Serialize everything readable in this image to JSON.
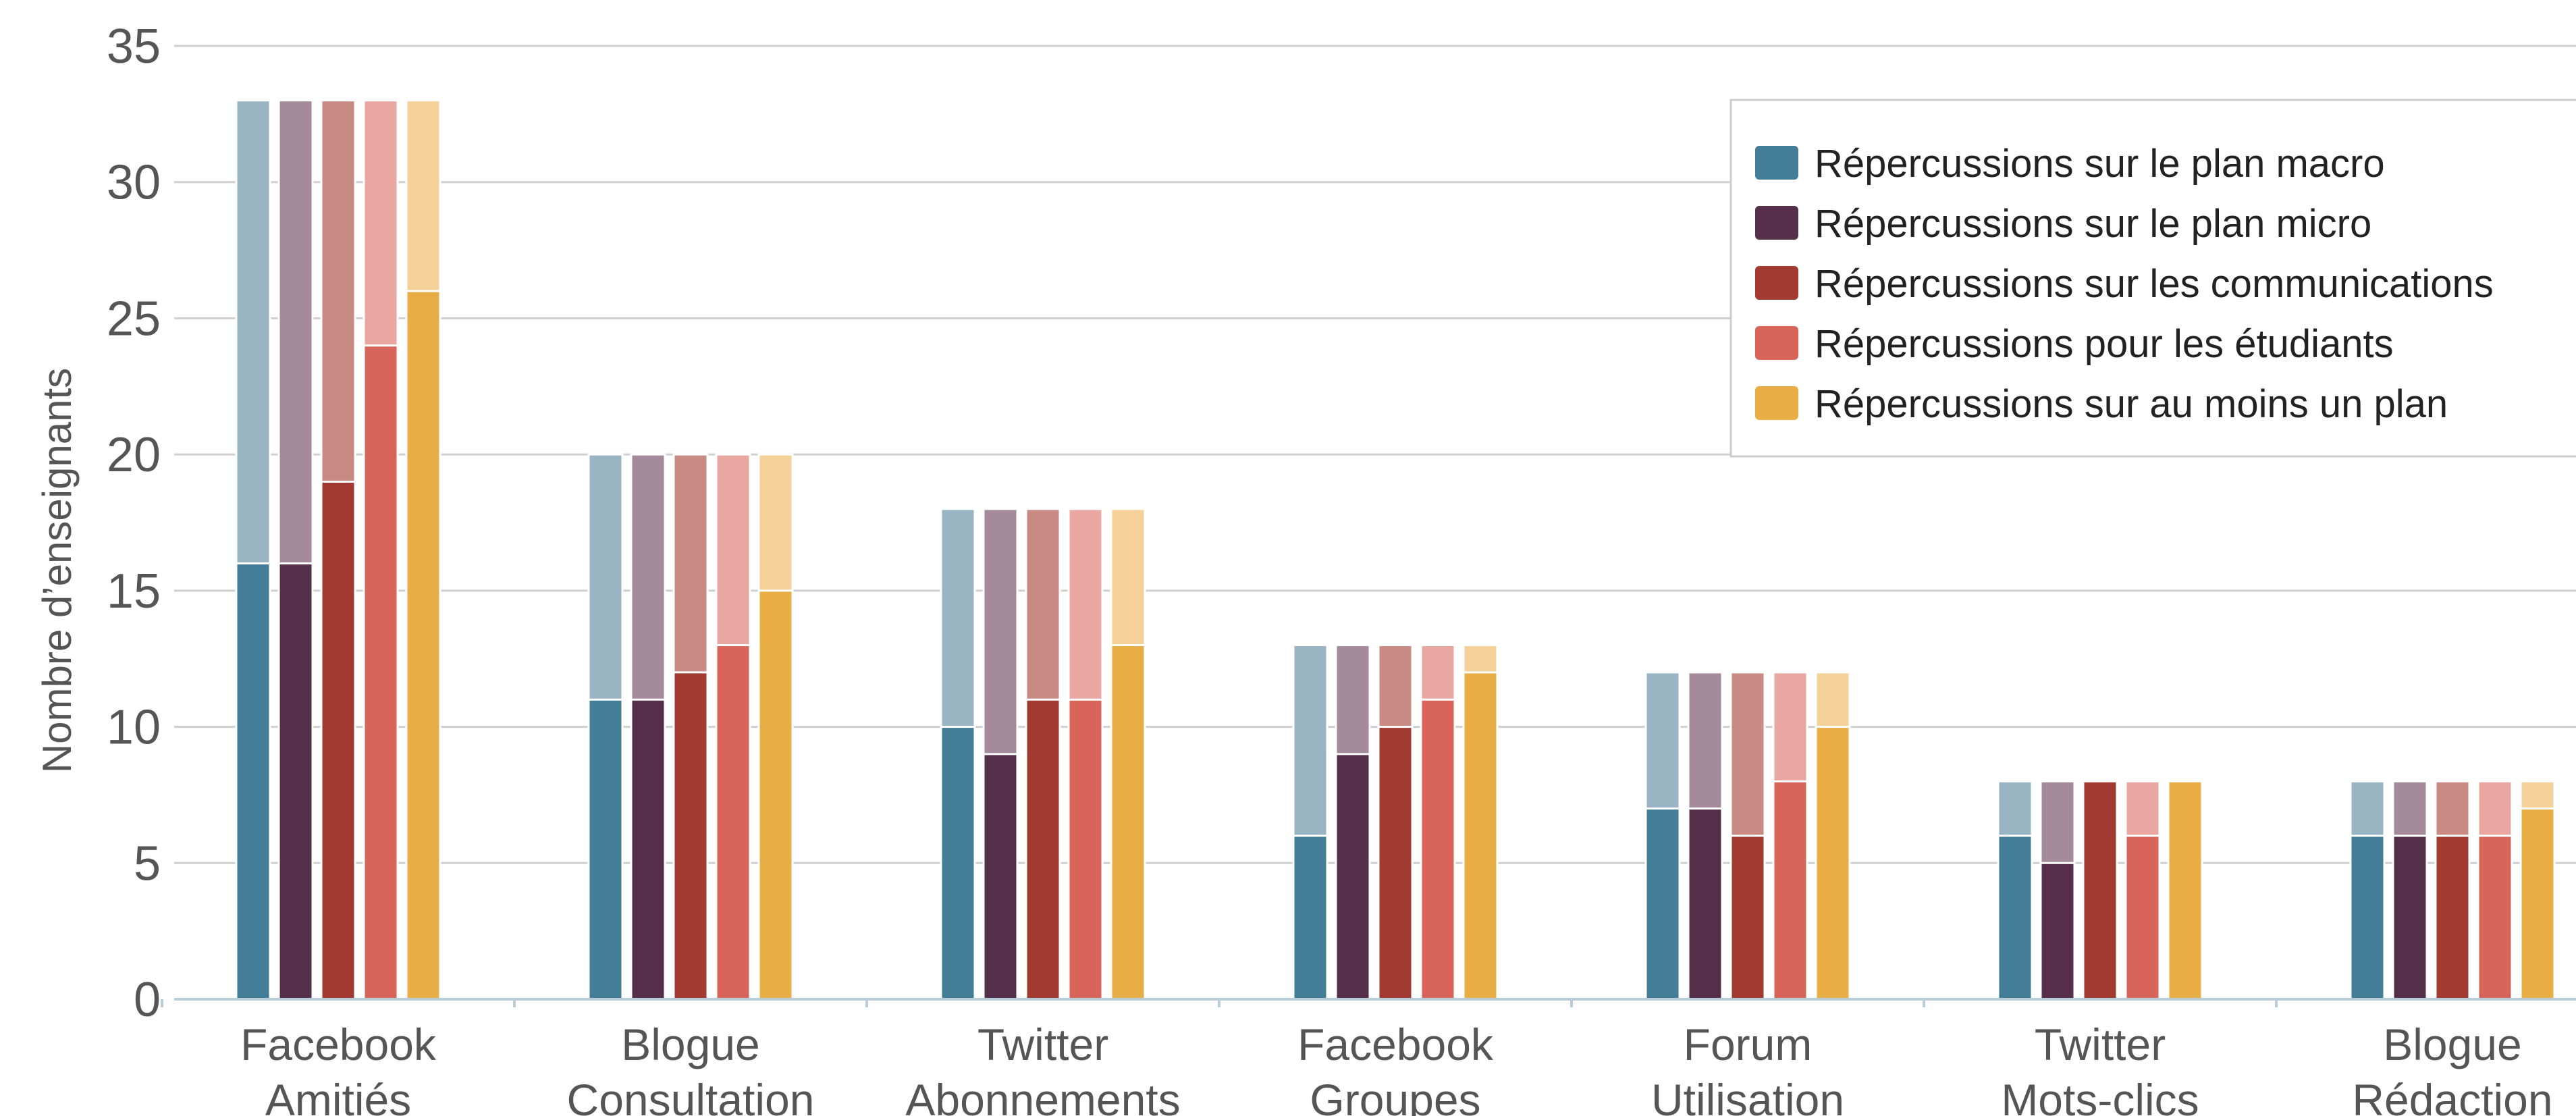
{
  "chart_data": {
    "type": "bar",
    "stacked_overlay": true,
    "ylabel": "Nombre d’enseignants",
    "ylim": [
      0,
      35
    ],
    "yticks": [
      0,
      5,
      10,
      15,
      20,
      25,
      30,
      35
    ],
    "grid": true,
    "legend_position": "top-right",
    "categories": [
      [
        "Facebook",
        "Amitiés"
      ],
      [
        "Blogue",
        "Consultation"
      ],
      [
        "Twitter",
        "Abonnements"
      ],
      [
        "Facebook",
        "Groupes"
      ],
      [
        "Forum",
        "Utilisation"
      ],
      [
        "Twitter",
        "Mots-clics"
      ],
      [
        "Blogue",
        "Rédaction"
      ]
    ],
    "totals": [
      33,
      20,
      18,
      13,
      12,
      8,
      8
    ],
    "series": [
      {
        "name": "Répercussions sur le plan macro",
        "color": "#437d97",
        "light_color": "#99b5c3",
        "values": [
          16,
          11,
          10,
          6,
          7,
          6,
          6
        ]
      },
      {
        "name": "Répercussions sur le plan micro",
        "color": "#56304a",
        "light_color": "#a58a9c",
        "values": [
          16,
          11,
          9,
          9,
          7,
          5,
          6
        ]
      },
      {
        "name": "Répercussions sur les communications",
        "color": "#a33a31",
        "light_color": "#c98a84",
        "values": [
          19,
          12,
          11,
          10,
          6,
          8,
          6
        ]
      },
      {
        "name": "Répercussions pour les étudiants",
        "color": "#d9645a",
        "light_color": "#e8a7a1",
        "values": [
          24,
          13,
          11,
          11,
          8,
          6,
          6
        ]
      },
      {
        "name": "Répercussions sur au moins un plan",
        "color": "#e9ad45",
        "light_color": "#f3d198",
        "values": [
          26,
          15,
          13,
          12,
          10,
          8,
          7
        ]
      }
    ]
  }
}
